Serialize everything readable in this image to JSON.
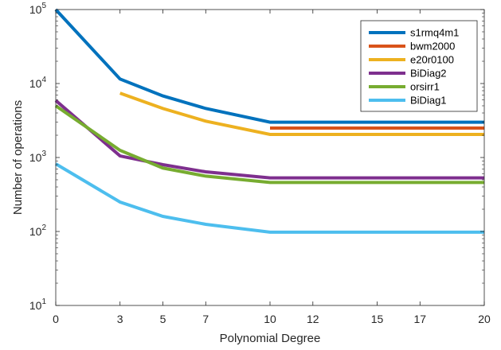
{
  "chart_data": {
    "type": "line",
    "title": "",
    "xlabel": "Polynomial Degree",
    "ylabel": "Number of operations",
    "x_ticks": [
      0,
      3,
      5,
      7,
      10,
      12,
      15,
      17,
      20
    ],
    "x_tick_labels": [
      "0",
      "3",
      "5",
      "7",
      "10",
      "12",
      "15",
      "17",
      "20"
    ],
    "xlim": [
      0,
      20
    ],
    "ylim": [
      10,
      100000
    ],
    "yscale": "log",
    "y_ticks": [
      10,
      100,
      1000,
      10000,
      100000
    ],
    "y_tick_labels": [
      {
        "base": "10",
        "exp": "1"
      },
      {
        "base": "10",
        "exp": "2"
      },
      {
        "base": "10",
        "exp": "3"
      },
      {
        "base": "10",
        "exp": "4"
      },
      {
        "base": "10",
        "exp": "5"
      }
    ],
    "grid": false,
    "legend_position": "top-right",
    "series": [
      {
        "name": "s1rmq4m1",
        "color": "#0072BD",
        "x": [
          0,
          3,
          5,
          7,
          10,
          20
        ],
        "y": [
          100000,
          11500,
          6800,
          4600,
          3000,
          3000
        ]
      },
      {
        "name": "bwm2000",
        "color": "#D95319",
        "x": [
          10,
          20
        ],
        "y": [
          2500,
          2500
        ]
      },
      {
        "name": "e20r0100",
        "color": "#EDB120",
        "x": [
          3,
          5,
          7,
          10,
          20
        ],
        "y": [
          7400,
          4600,
          3100,
          2050,
          2050
        ]
      },
      {
        "name": "BiDiag2",
        "color": "#7E2F8E",
        "x": [
          0,
          3,
          5,
          7,
          10,
          20
        ],
        "y": [
          5900,
          1050,
          800,
          640,
          530,
          530
        ]
      },
      {
        "name": "orsirr1",
        "color": "#77AC30",
        "x": [
          0,
          3,
          5,
          7,
          10,
          20
        ],
        "y": [
          5000,
          1250,
          720,
          560,
          460,
          460
        ]
      },
      {
        "name": "BiDiag1",
        "color": "#4DBEEE",
        "x": [
          0,
          3,
          5,
          7,
          10,
          20
        ],
        "y": [
          820,
          250,
          160,
          125,
          98,
          98
        ]
      }
    ]
  }
}
